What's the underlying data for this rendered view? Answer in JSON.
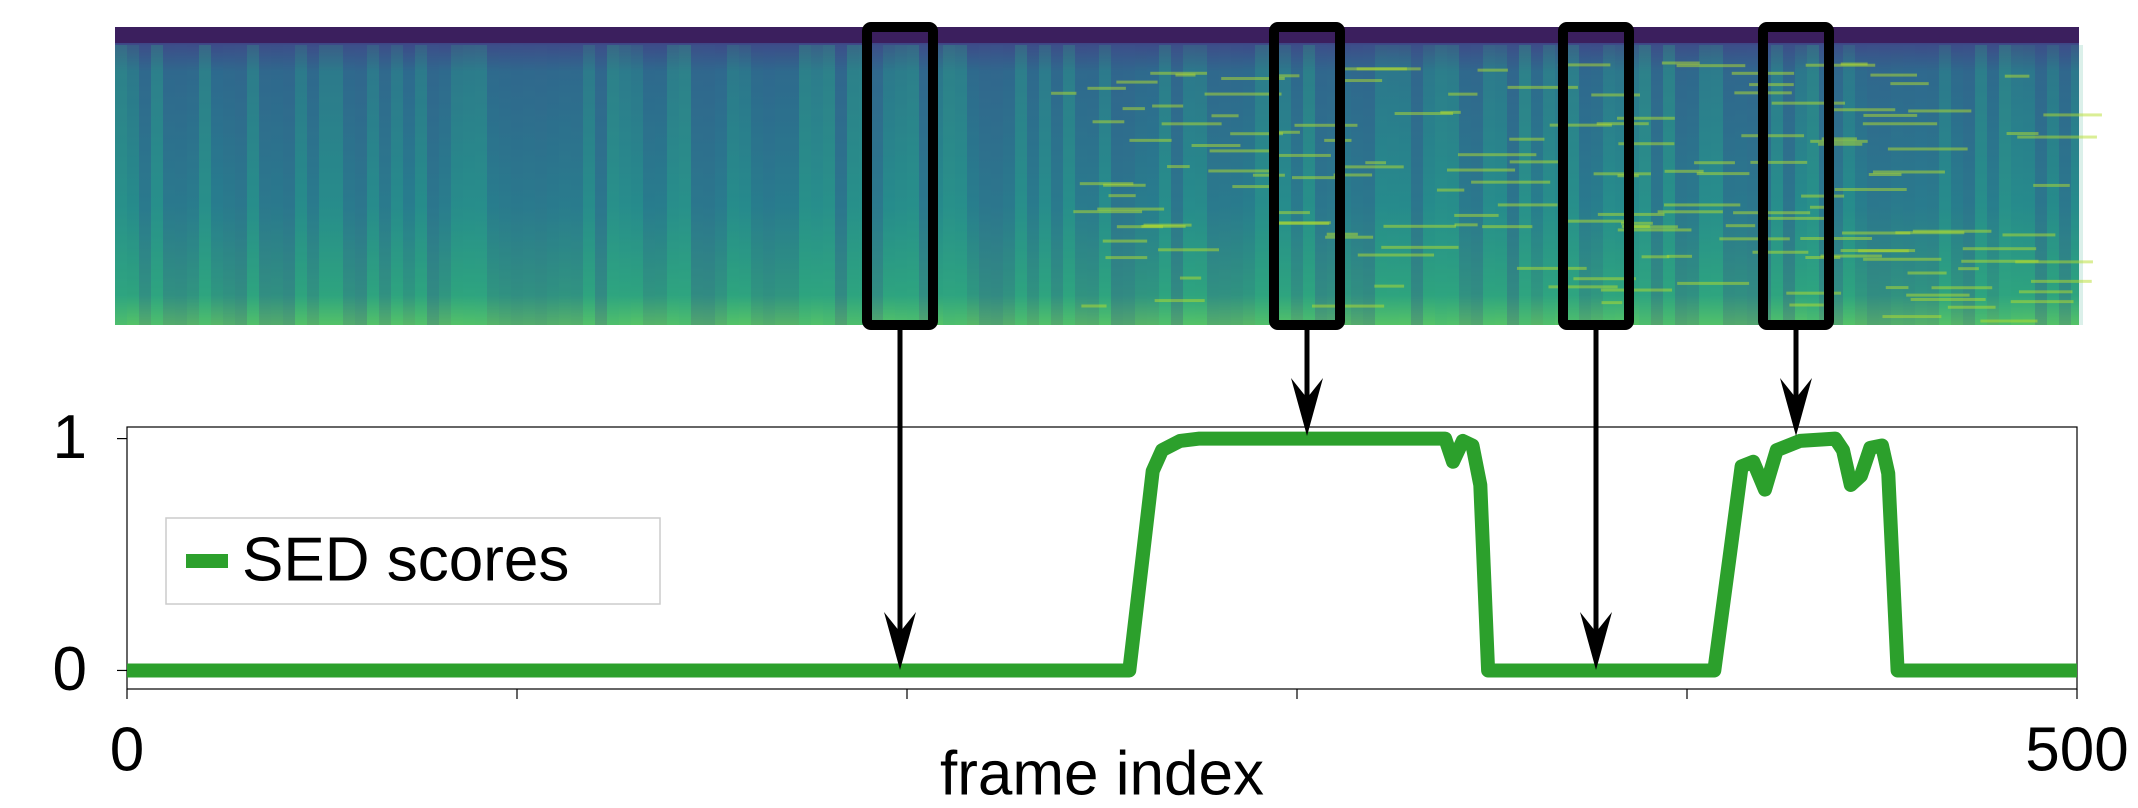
{
  "chart_data": {
    "type": "line",
    "xlabel": "frame index",
    "x": [
      0,
      257,
      260.5,
      263,
      265.4,
      270,
      275,
      338,
      340,
      342.5,
      345,
      347,
      349,
      407,
      411,
      414,
      417,
      420,
      423,
      429,
      438,
      440,
      442,
      444.6,
      447,
      450,
      451.6,
      454,
      500
    ],
    "series": [
      {
        "name": "SED scores",
        "color": "#2ca02c",
        "values": [
          0,
          0,
          0.5,
          0.86,
          0.95,
          0.99,
          1,
          1,
          0.9,
          0.99,
          0.97,
          0.8,
          0,
          0,
          0.5,
          0.88,
          0.9,
          0.78,
          0.95,
          0.99,
          1,
          0.95,
          0.8,
          0.84,
          0.96,
          0.97,
          0.85,
          0,
          0
        ]
      }
    ],
    "xlim": [
      0,
      500
    ],
    "ylim": [
      -0.08,
      1.05
    ],
    "xticks": [
      0,
      {
        "value": 100,
        "label": null
      },
      {
        "value": 200,
        "label": null
      },
      {
        "value": 300,
        "label": null
      },
      {
        "value": 400,
        "label": null
      },
      500
    ],
    "yticks": [
      0,
      1
    ],
    "legend": "middle-left"
  }
}
